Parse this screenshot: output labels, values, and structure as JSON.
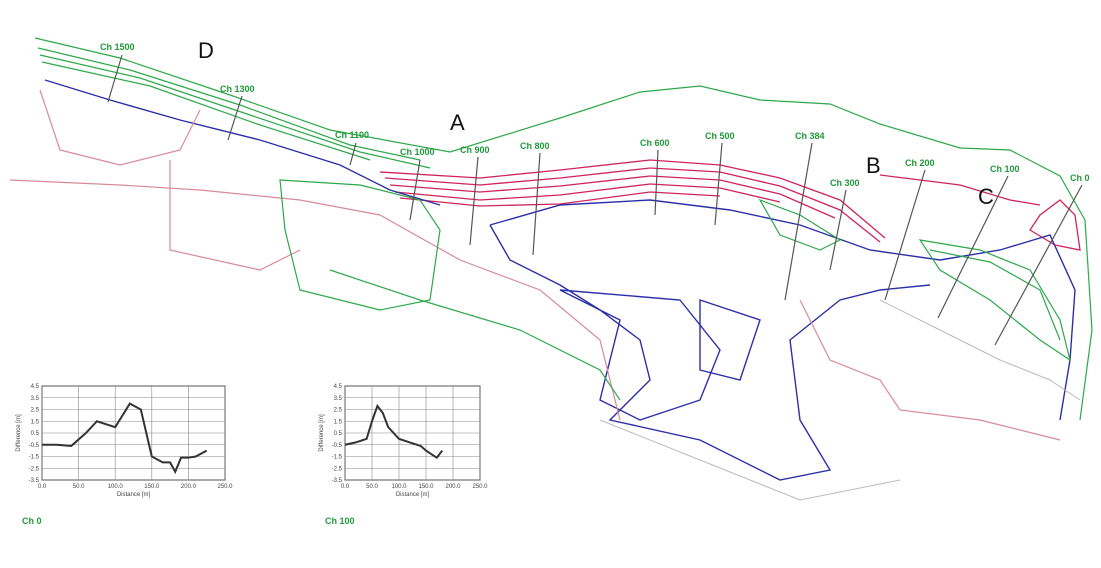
{
  "map": {
    "chainages": [
      "Ch 1500",
      "Ch 1300",
      "Ch 1100",
      "Ch 1000",
      "Ch 900",
      "Ch 800",
      "Ch 600",
      "Ch 500",
      "Ch 384",
      "Ch 300",
      "Ch 200",
      "Ch 100",
      "Ch 0"
    ],
    "areas": [
      "D",
      "A",
      "B",
      "C"
    ]
  },
  "chart_data": [
    {
      "type": "line",
      "title": "Ch 0",
      "x_label": "Distance [m]",
      "y_label": "Difference [m]",
      "color": "#333333",
      "grid": true,
      "x": [
        0,
        20,
        40,
        60,
        75,
        90,
        100,
        110,
        120,
        135,
        150,
        165,
        175,
        182,
        190,
        200,
        210,
        225
      ],
      "values": [
        -0.5,
        -0.5,
        -0.6,
        0.5,
        1.5,
        1.2,
        1.0,
        2.0,
        3.0,
        2.5,
        -1.5,
        -2.0,
        -2.0,
        -2.8,
        -1.6,
        -1.6,
        -1.5,
        -1.0
      ],
      "xlim": [
        0,
        250
      ],
      "ylim": [
        -3.5,
        4.5
      ],
      "xticks": [
        {
          "value": 0,
          "label": "0.0"
        },
        {
          "value": 50,
          "label": "50.0"
        },
        {
          "value": 100,
          "label": "100.0"
        },
        {
          "value": 150,
          "label": "150.0"
        },
        {
          "value": 200,
          "label": "200.0"
        },
        {
          "value": 250,
          "label": "250.0"
        }
      ],
      "yticks": [
        4.5,
        3.5,
        2.5,
        1.5,
        0.5,
        -0.5,
        -1.5,
        -2.5,
        -3.5
      ]
    },
    {
      "type": "line",
      "title": "Ch 100",
      "x_label": "Distance [m]",
      "y_label": "Difference [m]",
      "color": "#333333",
      "grid": true,
      "x": [
        0,
        20,
        40,
        50,
        60,
        70,
        80,
        100,
        120,
        140,
        150,
        160,
        170,
        180
      ],
      "values": [
        -0.5,
        -0.3,
        0.0,
        1.5,
        2.8,
        2.2,
        1.0,
        0.0,
        -0.3,
        -0.6,
        -1.0,
        -1.3,
        -1.6,
        -1.0
      ],
      "xlim": [
        0,
        250
      ],
      "ylim": [
        -3.5,
        4.5
      ],
      "xticks": [
        {
          "value": 0,
          "label": "0.0"
        },
        {
          "value": 50,
          "label": "50.0"
        },
        {
          "value": 100,
          "label": "100.0"
        },
        {
          "value": 150,
          "label": "150.0"
        },
        {
          "value": 200,
          "label": "200.0"
        },
        {
          "value": 250,
          "label": "250.0"
        }
      ],
      "yticks": [
        4.5,
        3.5,
        2.5,
        1.5,
        0.5,
        -0.5,
        -1.5,
        -2.5,
        -3.5
      ]
    }
  ]
}
